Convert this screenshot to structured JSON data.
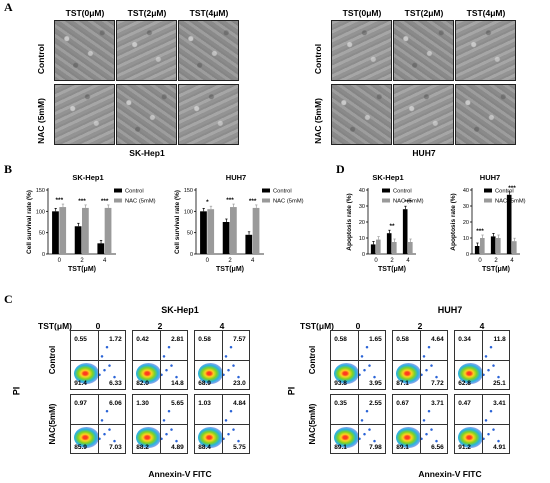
{
  "panel_labels": {
    "a": "A",
    "b": "B",
    "c": "C",
    "d": "D"
  },
  "panel_a": {
    "left": {
      "cell_line": "SK-Hep1",
      "columns": [
        "TST(0μM)",
        "TST(2μM)",
        "TST(4μM)"
      ],
      "rows": [
        "Control",
        "NAC (5mM)"
      ]
    },
    "right": {
      "cell_line": "HUH7",
      "columns": [
        "TST(0μM)",
        "TST(2μM)",
        "TST(4μM)"
      ],
      "rows": [
        "Control",
        "NAC (5mM)"
      ]
    }
  },
  "colors": {
    "control": "#000000",
    "nac": "#9a9a9a"
  },
  "panel_c": {
    "axis_x": "Annexin-V FITC",
    "axis_y": "PI",
    "tst_label": "TST(μM)",
    "left": {
      "cell_line": "SK-Hep1",
      "doses": [
        "0",
        "2",
        "4"
      ],
      "rows": [
        "Control",
        "NAC(5mM)"
      ],
      "quadrants": [
        [
          [
            "0.55",
            "1.72",
            "91.4",
            "6.33"
          ],
          [
            "0.42",
            "2.81",
            "82.0",
            "14.8"
          ],
          [
            "0.58",
            "7.57",
            "68.9",
            "23.0"
          ]
        ],
        [
          [
            "0.97",
            "6.06",
            "85.9",
            "7.03"
          ],
          [
            "1.30",
            "5.65",
            "88.2",
            "4.89"
          ],
          [
            "1.03",
            "4.84",
            "88.4",
            "5.75"
          ]
        ]
      ]
    },
    "right": {
      "cell_line": "HUH7",
      "doses": [
        "0",
        "2",
        "4"
      ],
      "rows": [
        "Control",
        "NAC(5mM)"
      ],
      "quadrants": [
        [
          [
            "0.58",
            "1.65",
            "93.8",
            "3.95"
          ],
          [
            "0.58",
            "4.64",
            "87.1",
            "7.72"
          ],
          [
            "0.34",
            "11.8",
            "62.8",
            "25.1"
          ]
        ],
        [
          [
            "0.35",
            "2.55",
            "89.1",
            "7.98"
          ],
          [
            "0.67",
            "3.71",
            "89.1",
            "6.56"
          ],
          [
            "0.47",
            "3.41",
            "91.2",
            "4.91"
          ]
        ]
      ]
    }
  },
  "chart_data": [
    {
      "type": "bar",
      "title": "SK-Hep1",
      "xlabel": "TST(μM)",
      "ylabel": "Cell survival rate (%)",
      "categories": [
        "0",
        "2",
        "4"
      ],
      "ylim": [
        0,
        150
      ],
      "yticks": [
        "0",
        "50",
        "100",
        "150"
      ],
      "series": [
        {
          "name": "Control",
          "values": [
            100,
            65,
            25
          ]
        },
        {
          "name": "NAC (5mM)",
          "values": [
            110,
            108,
            108
          ]
        }
      ],
      "annotations": [
        "***",
        "***",
        "***"
      ]
    },
    {
      "type": "bar",
      "title": "HUH7",
      "xlabel": "TST(μM)",
      "ylabel": "Cell survival rate (%)",
      "categories": [
        "0",
        "2",
        "4"
      ],
      "ylim": [
        0,
        150
      ],
      "yticks": [
        "0",
        "50",
        "100",
        "150"
      ],
      "series": [
        {
          "name": "Control",
          "values": [
            100,
            75,
            45
          ]
        },
        {
          "name": "NAC (5mM)",
          "values": [
            105,
            110,
            108
          ]
        }
      ],
      "annotations": [
        "*",
        "***",
        "***"
      ]
    },
    {
      "type": "bar",
      "title": "SK-Hep1",
      "xlabel": "TST(μM)",
      "ylabel": "Apoptosis rate (%)",
      "categories": [
        "0",
        "2",
        "4"
      ],
      "ylim": [
        0,
        40
      ],
      "yticks": [
        "0",
        "10",
        "20",
        "30",
        "40"
      ],
      "series": [
        {
          "name": "Control",
          "values": [
            6,
            13,
            28
          ]
        },
        {
          "name": "NAC (5mM)",
          "values": [
            9,
            7.5,
            7.5
          ]
        }
      ],
      "annotations": [
        "",
        "**",
        "***"
      ]
    },
    {
      "type": "bar",
      "title": "HUH7",
      "xlabel": "TST(μM)",
      "ylabel": "Apoptosis rate (%)",
      "categories": [
        "0",
        "2",
        "4"
      ],
      "ylim": [
        0,
        40
      ],
      "yticks": [
        "0",
        "10",
        "20",
        "30",
        "40"
      ],
      "series": [
        {
          "name": "Control",
          "values": [
            5,
            11,
            37
          ]
        },
        {
          "name": "NAC (5mM)",
          "values": [
            10,
            10,
            8
          ]
        }
      ],
      "annotations": [
        "***",
        "",
        "***"
      ]
    }
  ]
}
